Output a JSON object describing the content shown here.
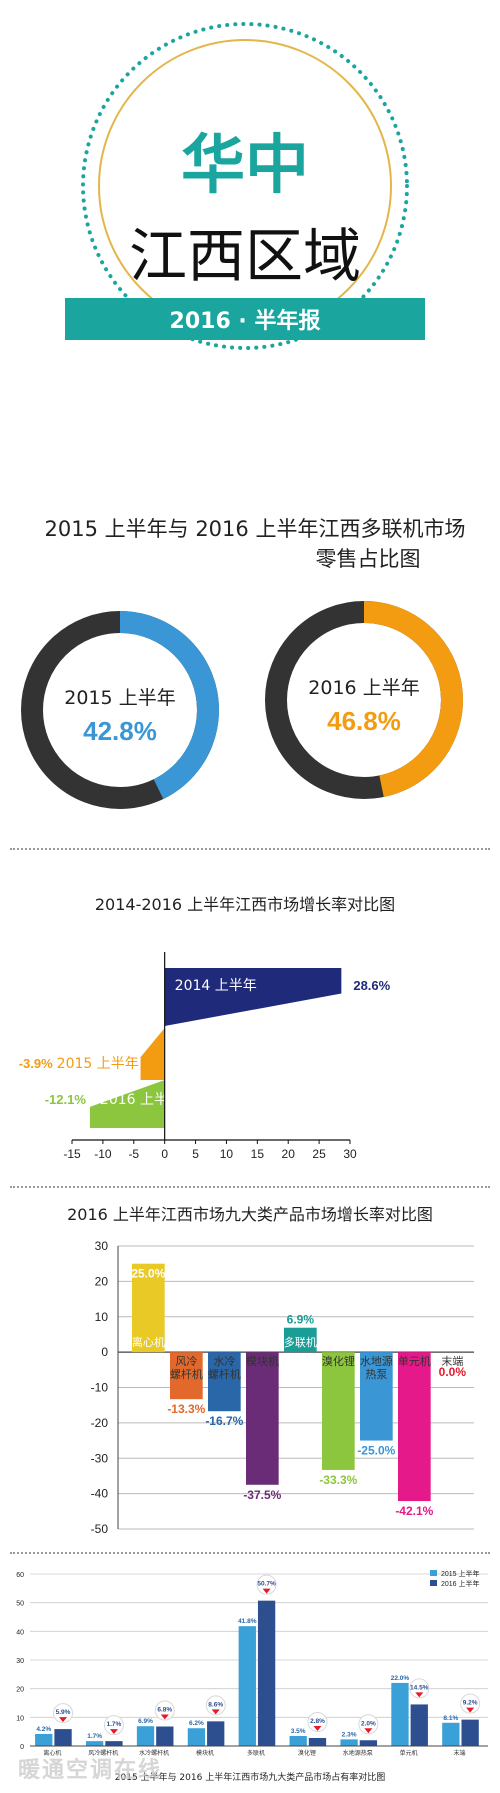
{
  "header": {
    "title_main": "华中",
    "title_sub": "江西区域",
    "banner": "2016 · 半年报"
  },
  "colors": {
    "teal": "#1aa59e",
    "blue": "#3a96d5",
    "orange": "#f39c12",
    "dark": "#333333",
    "navy": "#1f2b7a",
    "green": "#8cc63e"
  },
  "donuts": {
    "title_line1": "2015 上半年与 2016 上半年江西多联机市场",
    "title_line2": "零售占比图",
    "items": [
      {
        "label": "2015 上半年",
        "value_text": "42.8%",
        "value": 42.8,
        "color": "#3a96d5"
      },
      {
        "label": "2016 上半年",
        "value_text": "46.8%",
        "value": 46.8,
        "color": "#f39c12"
      }
    ]
  },
  "chart_data": [
    {
      "type": "bar",
      "orientation": "horizontal",
      "title": "2014-2016 上半年江西市场增长率对比图",
      "categories": [
        "2014 上半年",
        "2015 上半年",
        "2016 上半年"
      ],
      "values": [
        28.6,
        -3.9,
        -12.1
      ],
      "value_labels": [
        "28.6%",
        "-3.9%",
        "-12.1%"
      ],
      "colors": [
        "#1f2b7a",
        "#f39c12",
        "#8cc63e"
      ],
      "xlim": [
        -15,
        30
      ],
      "xticks": [
        "-15",
        "-10",
        "-5",
        "0",
        "5",
        "10",
        "15",
        "20",
        "25",
        "30"
      ]
    },
    {
      "type": "bar",
      "title": "2016 上半年江西市场九大类产品市场增长率对比图",
      "categories": [
        "离心机",
        "风冷螺杆机",
        "水冷螺杆机",
        "模块机",
        "多联机",
        "溴化锂",
        "水地源热泵",
        "单元机",
        "末端"
      ],
      "values": [
        25.0,
        -13.3,
        -16.7,
        -37.5,
        6.9,
        -33.3,
        -25.0,
        -42.1,
        0.0
      ],
      "value_labels": [
        "25.0%",
        "-13.3%",
        "-16.7%",
        "-37.5%",
        "6.9%",
        "-33.3%",
        "-25.0%",
        "-42.1%",
        "0.0%"
      ],
      "colors": [
        "#e8c926",
        "#e2692b",
        "#2a67a9",
        "#6a2c76",
        "#1a9d96",
        "#8cc63e",
        "#3a96d5",
        "#e6198a",
        "#e8192c"
      ],
      "ylim": [
        -50,
        30
      ],
      "yticks": [
        "30",
        "20",
        "10",
        "0",
        "-10",
        "-20",
        "-30",
        "-40",
        "-50"
      ],
      "grid": true
    },
    {
      "type": "bar",
      "title": "2015 上半年与 2016 上半年江西市场九大类产品市场占有率对比图",
      "categories": [
        "离心机",
        "风冷螺杆机",
        "水冷螺杆机",
        "模块机",
        "多联机",
        "溴化锂",
        "水地源热泵",
        "单元机",
        "末端"
      ],
      "series": [
        {
          "name": "2015 上半年",
          "values": [
            4.2,
            1.7,
            6.9,
            6.2,
            41.8,
            3.5,
            2.3,
            22.0,
            8.1
          ],
          "labels": [
            "4.2%",
            "1.7%",
            "6.9%",
            "6.2%",
            "41.8%",
            "3.5%",
            "2.3%",
            "22.0%",
            "8.1%"
          ]
        },
        {
          "name": "2016 上半年",
          "values": [
            5.9,
            1.7,
            6.8,
            8.6,
            50.7,
            2.8,
            2.0,
            14.5,
            9.2
          ],
          "labels": [
            "5.9%",
            "1.7%",
            "6.8%",
            "8.6%",
            "50.7%",
            "2.8%",
            "2.0%",
            "14.5%",
            "9.2%"
          ]
        }
      ],
      "colors": [
        "#3aa0d8",
        "#2e4f8f"
      ],
      "ylim": [
        0,
        60
      ],
      "yticks": [
        "60",
        "50",
        "40",
        "30",
        "20",
        "10",
        "0"
      ],
      "legend": "top-right",
      "grid": true
    }
  ]
}
